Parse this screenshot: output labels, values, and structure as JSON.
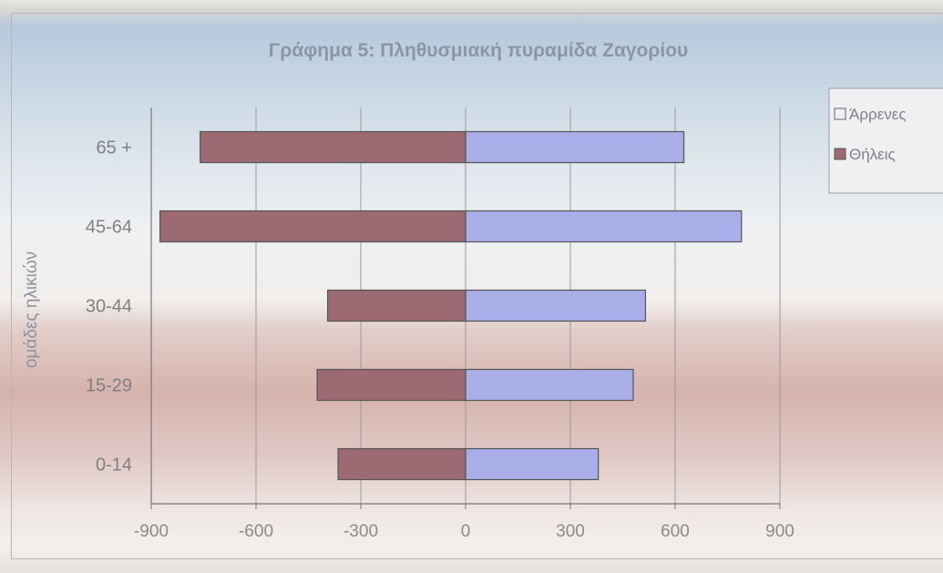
{
  "chart_data": {
    "type": "bar",
    "orientation": "horizontal",
    "title": "Γράφημα 5: Πληθυσμιακή πυραμίδα Ζαγορίου",
    "ylabel": "ομάδες ηλικιών",
    "xlabel": "",
    "categories": [
      "65 +",
      "45-64",
      "30-44",
      "15-29",
      "0-14"
    ],
    "series": [
      {
        "name": "Άρρενες",
        "color": "#a9aee8",
        "values": [
          625,
          790,
          515,
          480,
          380
        ]
      },
      {
        "name": "Θήλεις",
        "color": "#9c6a72",
        "values": [
          -760,
          -875,
          -395,
          -425,
          -365
        ]
      }
    ],
    "xlim": [
      -900,
      900
    ],
    "xticks": [
      "-900",
      "-600",
      "-300",
      "0",
      "300",
      "600",
      "900"
    ],
    "grid": true,
    "legend": "right"
  }
}
